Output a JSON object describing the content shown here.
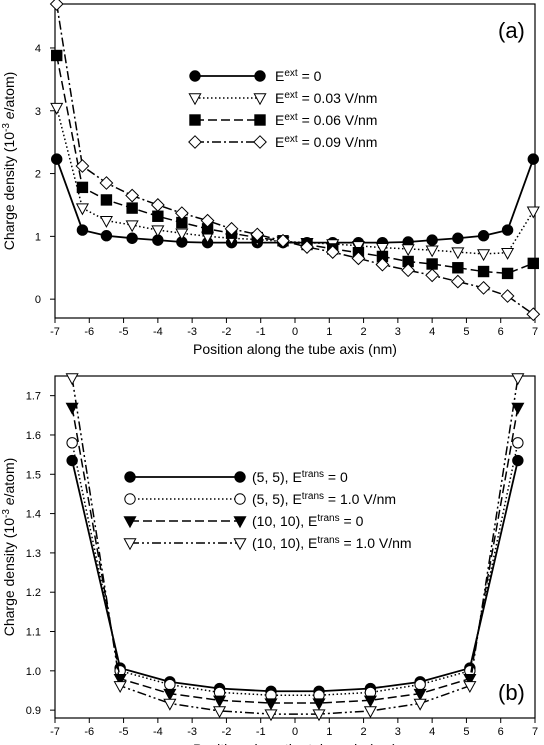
{
  "chart_data": [
    {
      "type": "line",
      "panel_label": "(a)",
      "xlabel": "Position along the tube axis (nm)",
      "ylabel": {
        "pre": "Charge density (10",
        "sup": "-3",
        "italic": " e",
        "post": "/atom)"
      },
      "xlim": [
        -7,
        7
      ],
      "ylim": [
        -0.3,
        4.7
      ],
      "xticks": [
        -7,
        -6,
        -5,
        -4,
        -3,
        -2,
        -1,
        0,
        1,
        2,
        3,
        4,
        5,
        6,
        7
      ],
      "yticks": [
        0,
        1,
        2,
        3,
        4
      ],
      "legend_position": "top-center",
      "series": [
        {
          "name": {
            "base": "E",
            "sup": "ext",
            "rest": " = 0"
          },
          "marker": "circle-filled",
          "dash": "solid",
          "x": [
            -6.95,
            -6.2,
            -5.5,
            -4.75,
            -4.0,
            -3.3,
            -2.55,
            -1.85,
            -1.1,
            -0.35,
            0.35,
            1.1,
            1.85,
            2.55,
            3.3,
            4.0,
            4.75,
            5.5,
            6.2,
            6.95
          ],
          "values": [
            2.23,
            1.1,
            1.01,
            0.97,
            0.94,
            0.91,
            0.9,
            0.9,
            0.9,
            0.9,
            0.9,
            0.9,
            0.9,
            0.9,
            0.91,
            0.94,
            0.97,
            1.01,
            1.1,
            2.23
          ]
        },
        {
          "name": {
            "base": "E",
            "sup": "ext",
            "rest": " = 0.03 V/nm"
          },
          "marker": "triangle-down-open",
          "dash": "dotted",
          "x": [
            -6.95,
            -6.2,
            -5.5,
            -4.75,
            -4.0,
            -3.3,
            -2.55,
            -1.85,
            -1.1,
            -0.35,
            0.35,
            1.1,
            1.85,
            2.55,
            3.3,
            4.0,
            4.75,
            5.5,
            6.2,
            6.95
          ],
          "values": [
            3.05,
            1.45,
            1.25,
            1.18,
            1.1,
            1.05,
            1.0,
            0.97,
            0.95,
            0.92,
            0.9,
            0.88,
            0.85,
            0.82,
            0.8,
            0.78,
            0.75,
            0.72,
            0.74,
            1.4
          ]
        },
        {
          "name": {
            "base": "E",
            "sup": "ext",
            "rest": " = 0.06 V/nm"
          },
          "marker": "square-filled",
          "dash": "dashed",
          "x": [
            -6.95,
            -6.2,
            -5.5,
            -4.75,
            -4.0,
            -3.3,
            -2.55,
            -1.85,
            -1.1,
            -0.35,
            0.35,
            1.1,
            1.85,
            2.55,
            3.3,
            4.0,
            4.75,
            5.5,
            6.2,
            6.95
          ],
          "values": [
            3.88,
            1.78,
            1.58,
            1.45,
            1.32,
            1.22,
            1.12,
            1.05,
            0.98,
            0.93,
            0.87,
            0.8,
            0.74,
            0.68,
            0.6,
            0.56,
            0.5,
            0.44,
            0.41,
            0.57
          ]
        },
        {
          "name": {
            "base": "E",
            "sup": "ext",
            "rest": " = 0.09 V/nm"
          },
          "marker": "diamond-open",
          "dash": "dashdot",
          "x": [
            -6.95,
            -6.2,
            -5.5,
            -4.75,
            -4.0,
            -3.3,
            -2.55,
            -1.85,
            -1.1,
            -0.35,
            0.35,
            1.1,
            1.85,
            2.55,
            3.3,
            4.0,
            4.75,
            5.5,
            6.2,
            6.95
          ],
          "values": [
            4.7,
            2.12,
            1.85,
            1.65,
            1.5,
            1.37,
            1.25,
            1.12,
            1.03,
            0.93,
            0.83,
            0.75,
            0.65,
            0.55,
            0.46,
            0.38,
            0.28,
            0.18,
            0.05,
            -0.24
          ]
        }
      ]
    },
    {
      "type": "line",
      "panel_label": "(b)",
      "xlabel": "Position along the tube axis (nm)",
      "ylabel": {
        "pre": "Charge density (10",
        "sup": "-3",
        "italic": " e",
        "post": "/atom)"
      },
      "xlim": [
        -7,
        7
      ],
      "ylim": [
        0.88,
        1.75
      ],
      "xticks": [
        -7,
        -6,
        -5,
        -4,
        -3,
        -2,
        -1,
        0,
        1,
        2,
        3,
        4,
        5,
        6,
        7
      ],
      "yticks": [
        0.9,
        1.0,
        1.1,
        1.2,
        1.3,
        1.4,
        1.5,
        1.6,
        1.7
      ],
      "legend_position": "center",
      "series": [
        {
          "name": {
            "base": "(5, 5), E",
            "sup": "trans",
            "rest": " = 0"
          },
          "marker": "circle-filled",
          "dash": "solid",
          "x": [
            -6.5,
            -5.1,
            -3.65,
            -2.2,
            -0.7,
            0.7,
            2.2,
            3.65,
            5.1,
            6.5
          ],
          "values": [
            1.535,
            1.007,
            0.972,
            0.955,
            0.948,
            0.948,
            0.955,
            0.972,
            1.007,
            1.535
          ]
        },
        {
          "name": {
            "base": "(5, 5), E",
            "sup": "trans",
            "rest": " = 1.0 V/nm"
          },
          "marker": "circle-open",
          "dash": "dotted",
          "x": [
            -6.5,
            -5.1,
            -3.65,
            -2.2,
            -0.7,
            0.7,
            2.2,
            3.65,
            5.1,
            6.5
          ],
          "values": [
            1.58,
            1.0,
            0.965,
            0.945,
            0.938,
            0.938,
            0.945,
            0.965,
            1.0,
            1.58
          ]
        },
        {
          "name": {
            "base": "(10, 10), E",
            "sup": "trans",
            "rest": " = 0"
          },
          "marker": "triangle-down-filled",
          "dash": "dashed",
          "x": [
            -6.5,
            -5.1,
            -3.65,
            -2.2,
            -0.7,
            0.7,
            2.2,
            3.65,
            5.1,
            6.5
          ],
          "values": [
            1.67,
            0.98,
            0.942,
            0.925,
            0.918,
            0.918,
            0.925,
            0.942,
            0.98,
            1.67
          ]
        },
        {
          "name": {
            "base": "(10, 10), E",
            "sup": "trans",
            "rest": " = 1.0 V/nm"
          },
          "marker": "triangle-down-open",
          "dash": "dashdotdot",
          "x": [
            -6.5,
            -5.1,
            -3.65,
            -2.2,
            -0.7,
            0.7,
            2.2,
            3.65,
            5.1,
            6.5
          ],
          "values": [
            1.745,
            0.962,
            0.917,
            0.898,
            0.89,
            0.89,
            0.898,
            0.917,
            0.962,
            1.745
          ]
        }
      ]
    }
  ]
}
